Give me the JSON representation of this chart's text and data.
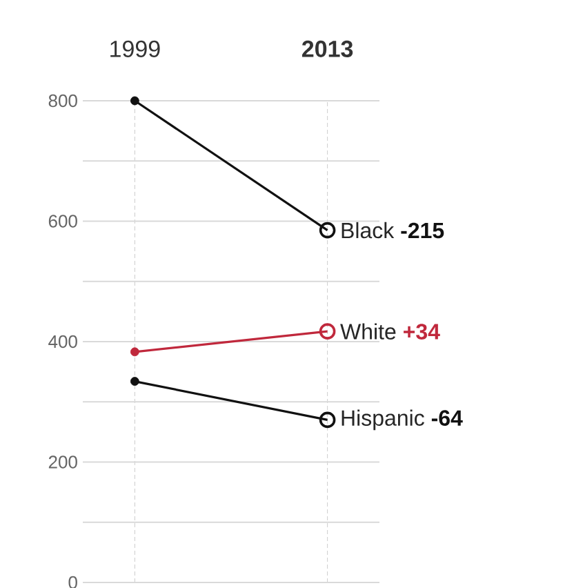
{
  "chart_data": {
    "type": "line",
    "categories": [
      "1999",
      "2013"
    ],
    "series": [
      {
        "name": "Black",
        "color": "#111111",
        "values": [
          800,
          585
        ]
      },
      {
        "name": "White",
        "color": "#c0283c",
        "values": [
          383,
          417
        ]
      },
      {
        "name": "Hispanic",
        "color": "#111111",
        "values": [
          334,
          270
        ]
      }
    ],
    "annotations": [
      "-215",
      "+34",
      "-64"
    ],
    "ylim": [
      0,
      800
    ],
    "yticks": [
      0,
      {
        "value": 100,
        "label": null
      },
      200,
      {
        "value": 300,
        "label": null
      },
      400,
      {
        "value": 500,
        "label": null
      },
      600,
      {
        "value": 700,
        "label": null
      },
      800
    ],
    "grid": true,
    "marker": "circle",
    "line_style": "solid"
  }
}
